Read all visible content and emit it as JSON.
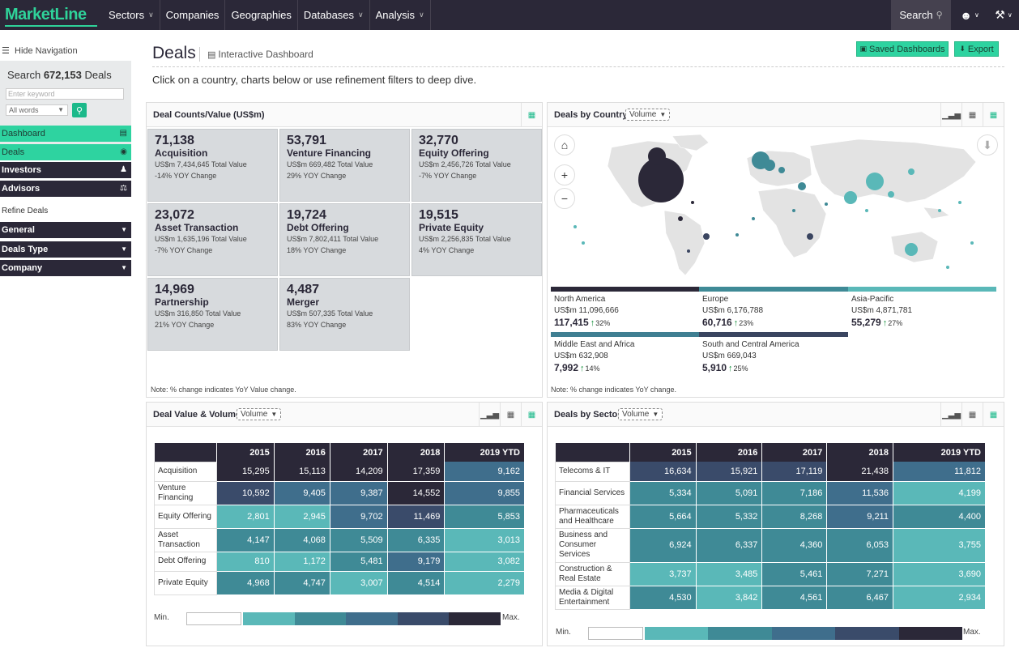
{
  "topnav": {
    "logo": "MarketLine",
    "items": [
      {
        "label": "Sectors",
        "dropdown": true
      },
      {
        "label": "Companies",
        "dropdown": false
      },
      {
        "label": "Geographies",
        "dropdown": false
      },
      {
        "label": "Databases",
        "dropdown": true
      },
      {
        "label": "Analysis",
        "dropdown": true
      }
    ],
    "search_label": "Search"
  },
  "sidebar": {
    "hide_nav": "Hide Navigation",
    "search_prefix": "Search",
    "search_count": "672,153",
    "search_suffix": "Deals",
    "keyword_placeholder": "Enter keyword",
    "words_option": "All words",
    "items": [
      {
        "label": "Dashboard",
        "style": "active",
        "icon": "dashboard-icon"
      },
      {
        "label": "Deals",
        "style": "active",
        "icon": "eye-icon"
      },
      {
        "label": "Investors",
        "style": "dark",
        "icon": "investor-icon"
      },
      {
        "label": "Advisors",
        "style": "dark",
        "icon": "advisor-icon"
      }
    ],
    "refine_label": "Refine Deals",
    "filters": [
      {
        "label": "General",
        "icon": "filter-icon"
      },
      {
        "label": "Deals Type",
        "icon": "filter-icon"
      },
      {
        "label": "Company",
        "icon": "filter-icon"
      }
    ]
  },
  "header": {
    "title": "Deals",
    "subtitle": "Interactive Dashboard",
    "saved_btn": "Saved Dashboards",
    "export_btn": "Export",
    "instruction": "Click on a country, charts below or use refinement filters to deep dive."
  },
  "deal_counts": {
    "title": "Deal Counts/Value (US$m)",
    "note": "Note: % change indicates YoY Value change.",
    "tiles": [
      {
        "count": "71,138",
        "label": "Acquisition",
        "value": "US$m 7,434,645 Total Value",
        "yoy": "-14% YOY Change"
      },
      {
        "count": "53,791",
        "label": "Venture Financing",
        "value": "US$m 669,482 Total Value",
        "yoy": "29% YOY Change"
      },
      {
        "count": "32,770",
        "label": "Equity Offering",
        "value": "US$m 2,456,726 Total Value",
        "yoy": "-7% YOY Change"
      },
      {
        "count": "23,072",
        "label": "Asset Transaction",
        "value": "US$m 1,635,196 Total Value",
        "yoy": "-7% YOY Change"
      },
      {
        "count": "19,724",
        "label": "Debt Offering",
        "value": "US$m 7,802,411 Total Value",
        "yoy": "18% YOY Change"
      },
      {
        "count": "19,515",
        "label": "Private Equity",
        "value": "US$m 2,256,835 Total Value",
        "yoy": "4% YOY Change"
      },
      {
        "count": "14,969",
        "label": "Partnership",
        "value": "US$m 316,850 Total Value",
        "yoy": "21% YOY Change"
      },
      {
        "count": "4,487",
        "label": "Merger",
        "value": "US$m 507,335 Total Value",
        "yoy": "83% YOY Change"
      }
    ]
  },
  "by_country": {
    "title": "Deals by Country",
    "select": "Volume",
    "note": "Note: % change indicates YoY change.",
    "regions": [
      {
        "name": "North America",
        "value": "US$m 11,096,666",
        "count": "117,415",
        "pct": "32%",
        "color": "#2b2838"
      },
      {
        "name": "Europe",
        "value": "US$m 6,176,788",
        "count": "60,716",
        "pct": "23%",
        "color": "#3f8a96"
      },
      {
        "name": "Asia-Pacific",
        "value": "US$m 4,871,781",
        "count": "55,279",
        "pct": "27%",
        "color": "#5ab8b8"
      },
      {
        "name": "Middle East and Africa",
        "value": "US$m 632,908",
        "count": "7,992",
        "pct": "14%",
        "color": "#3f7f92"
      },
      {
        "name": "South and Central America",
        "value": "US$m 669,043",
        "count": "5,910",
        "pct": "25%",
        "color": "#3a4560"
      }
    ]
  },
  "value_volume": {
    "title": "Deal Value & Volume",
    "select": "Volume",
    "columns": [
      "2015",
      "2016",
      "2017",
      "2018",
      "2019 YTD"
    ],
    "rows": [
      {
        "label": "Acquisition",
        "cells": [
          "15,295",
          "15,113",
          "14,209",
          "17,359",
          "9,162"
        ],
        "colors": [
          "#2b2838",
          "#2b2838",
          "#2b2838",
          "#2b2838",
          "#3f6e8c"
        ]
      },
      {
        "label": "Venture Financing",
        "cells": [
          "10,592",
          "9,405",
          "9,387",
          "14,552",
          "9,855"
        ],
        "colors": [
          "#3a4b6a",
          "#3f6e8c",
          "#3f6e8c",
          "#2b2838",
          "#3f6e8c"
        ]
      },
      {
        "label": "Equity Offering",
        "cells": [
          "2,801",
          "2,945",
          "9,702",
          "11,469",
          "5,853"
        ],
        "colors": [
          "#5ab8b8",
          "#5ab8b8",
          "#3f6e8c",
          "#3a4b6a",
          "#3f8a96"
        ]
      },
      {
        "label": "Asset Transaction",
        "cells": [
          "4,147",
          "4,068",
          "5,509",
          "6,335",
          "3,013"
        ],
        "colors": [
          "#3f8a96",
          "#3f8a96",
          "#3f8a96",
          "#3f8a96",
          "#5ab8b8"
        ]
      },
      {
        "label": "Debt Offering",
        "cells": [
          "810",
          "1,172",
          "5,481",
          "9,179",
          "3,082"
        ],
        "colors": [
          "#5ab8b8",
          "#5ab8b8",
          "#3f8a96",
          "#3f6e8c",
          "#5ab8b8"
        ]
      },
      {
        "label": "Private Equity",
        "cells": [
          "4,968",
          "4,747",
          "3,007",
          "4,514",
          "2,279"
        ],
        "colors": [
          "#3f8a96",
          "#3f8a96",
          "#5ab8b8",
          "#3f8a96",
          "#5ab8b8"
        ]
      }
    ],
    "min_label": "Min.",
    "max_label": "Max."
  },
  "by_sector": {
    "title": "Deals by Sector",
    "select": "Volume",
    "columns": [
      "2015",
      "2016",
      "2017",
      "2018",
      "2019 YTD"
    ],
    "rows": [
      {
        "label": "Telecoms & IT",
        "cells": [
          "16,634",
          "15,921",
          "17,119",
          "21,438",
          "11,812"
        ],
        "colors": [
          "#3a4b6a",
          "#3a4b6a",
          "#3a4b6a",
          "#2b2838",
          "#3f6e8c"
        ]
      },
      {
        "label": "Financial Services",
        "cells": [
          "5,334",
          "5,091",
          "7,186",
          "11,536",
          "4,199"
        ],
        "colors": [
          "#3f8a96",
          "#3f8a96",
          "#3f8a96",
          "#3f6e8c",
          "#5ab8b8"
        ]
      },
      {
        "label": "Pharmaceuticals and Healthcare",
        "cells": [
          "5,664",
          "5,332",
          "8,268",
          "9,211",
          "4,400"
        ],
        "colors": [
          "#3f8a96",
          "#3f8a96",
          "#3f8a96",
          "#3f6e8c",
          "#3f8a96"
        ]
      },
      {
        "label": "Business and Consumer Services",
        "cells": [
          "6,924",
          "6,337",
          "4,360",
          "6,053",
          "3,755"
        ],
        "colors": [
          "#3f8a96",
          "#3f8a96",
          "#3f8a96",
          "#3f8a96",
          "#5ab8b8"
        ]
      },
      {
        "label": "Construction & Real Estate",
        "cells": [
          "3,737",
          "3,485",
          "5,461",
          "7,271",
          "3,690"
        ],
        "colors": [
          "#5ab8b8",
          "#5ab8b8",
          "#3f8a96",
          "#3f8a96",
          "#5ab8b8"
        ]
      },
      {
        "label": "Media & Digital Entertainment",
        "cells": [
          "4,530",
          "3,842",
          "4,561",
          "6,467",
          "2,934"
        ],
        "colors": [
          "#3f8a96",
          "#5ab8b8",
          "#3f8a96",
          "#3f8a96",
          "#5ab8b8"
        ]
      }
    ],
    "min_label": "Min.",
    "max_label": "Max."
  },
  "legend_colors": [
    "#5ab8b8",
    "#3f8a96",
    "#3f6e8c",
    "#3a4b6a",
    "#2b2838"
  ]
}
